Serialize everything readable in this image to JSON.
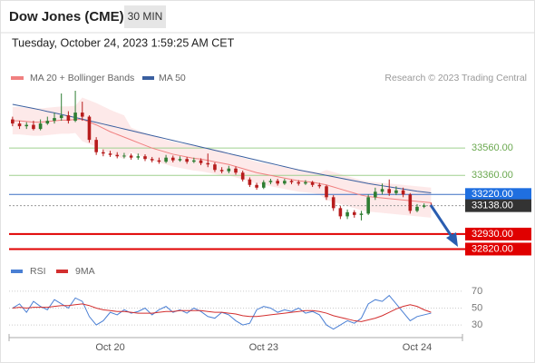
{
  "header": {
    "title": "Dow Jones (CME)",
    "interval": "30 MIN"
  },
  "timestamp": "Tuesday, October 24, 2023 1:59:25 AM CET",
  "chart_data": [
    {
      "type": "candlestick",
      "source": "Research © 2023 Trading Central",
      "ylim": [
        32750,
        33980
      ],
      "up_color": "#2e7d32",
      "down_color": "#b71c1c",
      "categories": [
        null,
        null,
        null,
        null,
        null,
        null,
        null,
        null,
        null,
        null,
        null,
        null,
        null,
        null,
        "Oct 20",
        null,
        null,
        null,
        null,
        null,
        null,
        null,
        null,
        null,
        null,
        null,
        null,
        null,
        null,
        null,
        null,
        null,
        null,
        null,
        null,
        null,
        "Oct 23",
        null,
        null,
        null,
        null,
        null,
        null,
        null,
        null,
        null,
        null,
        null,
        null,
        null,
        null,
        null,
        null,
        null,
        null,
        null,
        null,
        null,
        "Oct 24",
        null,
        null,
        null,
        null,
        null,
        null
      ],
      "open": [
        33770,
        33740,
        33720,
        33730,
        33700,
        33740,
        33760,
        33780,
        33800,
        33760,
        33820,
        33790,
        33620,
        33530,
        33520,
        33510,
        33500,
        33505,
        33490,
        33500,
        33480,
        33470,
        33460,
        33490,
        33470,
        33480,
        33460,
        33470,
        33450,
        33440,
        33400,
        33390,
        33410,
        33380,
        33330,
        33290,
        33270,
        33310,
        33320,
        33300,
        33320,
        33310,
        33300,
        33310,
        33290,
        33280,
        33200,
        33120,
        33060,
        33090,
        33070,
        33080,
        33200,
        33240,
        33260,
        33230,
        33250,
        33220,
        33100,
        33130,
        33140,
        null,
        null,
        null,
        null
      ],
      "high": [
        33790,
        33760,
        33750,
        33760,
        33770,
        33790,
        33820,
        33960,
        33830,
        33980,
        33900,
        33800,
        33640,
        33550,
        33540,
        33530,
        33525,
        33520,
        33520,
        33515,
        33495,
        33490,
        33510,
        33505,
        33500,
        33495,
        33490,
        33485,
        33520,
        33455,
        33420,
        33430,
        33425,
        33395,
        33345,
        33305,
        33325,
        33335,
        33335,
        33335,
        33330,
        33325,
        33325,
        33320,
        33305,
        33290,
        33215,
        33135,
        33110,
        33105,
        33100,
        33220,
        33270,
        33300,
        33330,
        33280,
        33270,
        33230,
        33150,
        33155,
        33160,
        null,
        null,
        null,
        null
      ],
      "low": [
        33720,
        33700,
        33700,
        33690,
        33690,
        33730,
        33740,
        33760,
        33740,
        33750,
        33760,
        33600,
        33510,
        33500,
        33495,
        33485,
        33485,
        33475,
        33475,
        33465,
        33455,
        33445,
        33450,
        33455,
        33460,
        33445,
        33450,
        33435,
        33420,
        33385,
        33375,
        33375,
        33365,
        33315,
        33275,
        33255,
        33260,
        33295,
        33285,
        33290,
        33295,
        33285,
        33290,
        33275,
        33265,
        33180,
        33100,
        33040,
        33040,
        33050,
        33030,
        33070,
        33180,
        33220,
        33210,
        33215,
        33200,
        33080,
        33090,
        33120,
        33125,
        null,
        null,
        null,
        null
      ],
      "close": [
        33740,
        33720,
        33730,
        33700,
        33740,
        33760,
        33780,
        33800,
        33760,
        33820,
        33790,
        33620,
        33530,
        33520,
        33510,
        33500,
        33505,
        33490,
        33500,
        33480,
        33470,
        33460,
        33490,
        33470,
        33480,
        33460,
        33470,
        33450,
        33440,
        33400,
        33390,
        33410,
        33380,
        33330,
        33290,
        33270,
        33310,
        33320,
        33300,
        33320,
        33310,
        33300,
        33310,
        33290,
        33280,
        33200,
        33120,
        33060,
        33090,
        33070,
        33080,
        33200,
        33240,
        33260,
        33230,
        33250,
        33220,
        33100,
        33130,
        33140,
        33138,
        null,
        null,
        null,
        null
      ],
      "ma20": {
        "name": "MA 20 + Bollinger Bands",
        "color": "#f08080",
        "band_color": "#fde3e3",
        "values": [
          33760,
          33760,
          33755,
          33750,
          33750,
          33755,
          33760,
          33765,
          33765,
          33770,
          33770,
          33750,
          33730,
          33705,
          33680,
          33660,
          33640,
          33620,
          33600,
          33580,
          33560,
          33545,
          33530,
          33515,
          33505,
          33495,
          33485,
          33480,
          33470,
          33460,
          33450,
          33440,
          33425,
          33410,
          33395,
          33380,
          33370,
          33360,
          33350,
          33340,
          33330,
          33320,
          33315,
          33310,
          33300,
          33290,
          33275,
          33260,
          33245,
          33230,
          33215,
          33205,
          33200,
          33195,
          33190,
          33185,
          33180,
          33175,
          33170,
          33165,
          33160,
          null,
          null,
          null,
          null
        ],
        "upper": [
          33860,
          33860,
          33855,
          33850,
          33850,
          33855,
          33860,
          33865,
          33865,
          33870,
          33930,
          33910,
          33890,
          33865,
          33840,
          33820,
          33800,
          33710,
          33690,
          33670,
          33650,
          33635,
          33620,
          33605,
          33595,
          33585,
          33575,
          33570,
          33560,
          33550,
          33540,
          33520,
          33505,
          33490,
          33475,
          33460,
          33450,
          33440,
          33430,
          33420,
          33410,
          33400,
          33395,
          33390,
          33380,
          33400,
          33385,
          33370,
          33355,
          33340,
          33325,
          33315,
          33310,
          33305,
          33300,
          33295,
          33290,
          33285,
          33280,
          33275,
          33270,
          null,
          null,
          null,
          null
        ],
        "lower": [
          33660,
          33660,
          33655,
          33650,
          33650,
          33655,
          33660,
          33665,
          33665,
          33670,
          33610,
          33590,
          33570,
          33545,
          33520,
          33500,
          33480,
          33530,
          33510,
          33490,
          33470,
          33455,
          33440,
          33425,
          33415,
          33405,
          33395,
          33390,
          33380,
          33370,
          33360,
          33360,
          33345,
          33330,
          33315,
          33300,
          33290,
          33280,
          33270,
          33260,
          33250,
          33240,
          33235,
          33230,
          33220,
          33180,
          33165,
          33150,
          33135,
          33120,
          33105,
          33095,
          33090,
          33085,
          33080,
          33075,
          33070,
          33065,
          33060,
          33055,
          33050,
          null,
          null,
          null,
          null
        ]
      },
      "ma50": {
        "name": "MA 50",
        "color": "#3a5f9f",
        "values": [
          33880,
          33870,
          33860,
          33850,
          33840,
          33828,
          33818,
          33806,
          33795,
          33784,
          33772,
          33760,
          33748,
          33736,
          33724,
          33712,
          33700,
          33688,
          33676,
          33664,
          33652,
          33640,
          33628,
          33616,
          33604,
          33592,
          33580,
          33568,
          33556,
          33544,
          33532,
          33520,
          33508,
          33496,
          33484,
          33472,
          33460,
          33448,
          33436,
          33424,
          33412,
          33400,
          33390,
          33380,
          33370,
          33360,
          33350,
          33340,
          33330,
          33320,
          33310,
          33300,
          33292,
          33284,
          33276,
          33268,
          33260,
          33252,
          33244,
          33238,
          33232,
          null,
          null,
          null,
          null
        ]
      },
      "levels": [
        {
          "value": 33560,
          "label": "33560.00",
          "color": "#9fd08f",
          "text_color": "#6aa84f",
          "style": "plain"
        },
        {
          "value": 33360,
          "label": "33360.00",
          "color": "#9fd08f",
          "text_color": "#6aa84f",
          "style": "plain"
        },
        {
          "value": 33220,
          "label": "33220.00",
          "color": "#3a6fc4",
          "text_color": "#ffffff",
          "box": "#1f6fe0",
          "style": "box"
        },
        {
          "value": 33138,
          "label": "33138.00",
          "color": "#999999",
          "text_color": "#ffffff",
          "box": "#333333",
          "style": "current"
        },
        {
          "value": 32930,
          "label": "32930.00",
          "color": "#e00000",
          "text_color": "#ffffff",
          "box": "#e00000",
          "style": "support"
        },
        {
          "value": 32820,
          "label": "32820.00",
          "color": "#e00000",
          "text_color": "#ffffff",
          "box": "#e00000",
          "style": "support"
        }
      ]
    },
    {
      "type": "line",
      "ylim": [
        15,
        85
      ],
      "yticks": [
        70,
        50,
        30
      ],
      "grid": true,
      "series": [
        {
          "name": "RSI",
          "color": "#4a7fd4",
          "values": [
            50,
            55,
            45,
            58,
            52,
            48,
            60,
            55,
            50,
            62,
            58,
            40,
            30,
            35,
            45,
            42,
            48,
            44,
            46,
            50,
            42,
            48,
            52,
            45,
            48,
            44,
            50,
            46,
            40,
            38,
            45,
            42,
            35,
            30,
            32,
            48,
            52,
            50,
            45,
            48,
            46,
            50,
            44,
            46,
            42,
            30,
            25,
            30,
            35,
            32,
            38,
            55,
            60,
            58,
            65,
            55,
            45,
            35,
            40,
            42,
            44,
            null,
            null,
            null,
            null
          ]
        },
        {
          "name": "9MA",
          "color": "#d32f2f",
          "values": [
            50,
            51,
            50,
            51,
            51,
            51,
            52,
            53,
            53,
            54,
            55,
            53,
            50,
            48,
            47,
            46,
            46,
            45,
            44,
            44,
            44,
            45,
            46,
            46,
            47,
            47,
            47,
            47,
            46,
            45,
            45,
            44,
            43,
            41,
            40,
            40,
            41,
            42,
            43,
            44,
            45,
            46,
            47,
            47,
            46,
            44,
            41,
            39,
            37,
            35,
            34,
            36,
            38,
            41,
            45,
            49,
            52,
            54,
            52,
            48,
            45,
            null,
            null,
            null,
            null
          ]
        }
      ]
    }
  ]
}
